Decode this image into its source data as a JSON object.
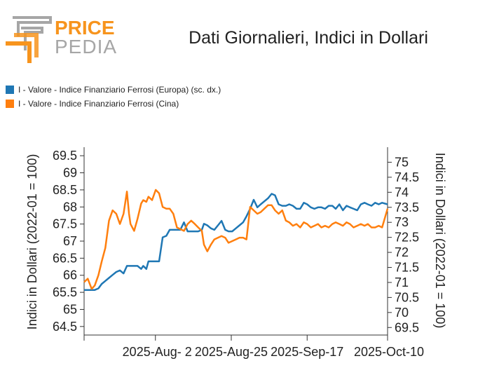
{
  "logo": {
    "line1": "PRICE",
    "line2": "PEDIA",
    "accent": "#f7941d",
    "gray": "#a6a6a6"
  },
  "chart_data": {
    "type": "line",
    "title": "Dati Giornalieri, Indici in Dollari",
    "ylabel_left": "Indici in Dollari (2022-01 = 100)",
    "ylabel_right": "Indici in Dollari (2022-01 = 100)",
    "y_left": {
      "min": 64.25,
      "max": 69.75,
      "ticks": [
        "64.5",
        "65",
        "65.5",
        "66",
        "66.5",
        "67",
        "67.5",
        "68",
        "68.5",
        "69",
        "69.5"
      ]
    },
    "y_right": {
      "min": 69.25,
      "max": 75.5,
      "ticks": [
        "69.5",
        "70",
        "70.5",
        "71",
        "71.5",
        "72",
        "72.5",
        "73",
        "73.5",
        "74",
        "74.5",
        "75"
      ]
    },
    "x": {
      "min": 0,
      "max": 100,
      "ticks": [
        {
          "pos": 23.5,
          "label": "2025-Aug- 2"
        },
        {
          "pos": 48.5,
          "label": "2025-Aug-25"
        },
        {
          "pos": 73.5,
          "label": "2025-Sep-17"
        },
        {
          "pos": 100,
          "label": "2025-Oct-10"
        }
      ]
    },
    "legend_position": "top-left",
    "series": [
      {
        "name": "I - Valore - Indice Finanziario Ferrosi (Europa) (sc. dx.)",
        "axis": "right",
        "color": "#1f77b4",
        "x": [
          0,
          1.2,
          2.5,
          3.5,
          4.7,
          5.8,
          7,
          8.2,
          9.4,
          10.6,
          11.8,
          13,
          14.1,
          14.8,
          15.3,
          16.5,
          17.6,
          18.8,
          19.5,
          20.5,
          21.2,
          22.4,
          23.6,
          24.7,
          25.9,
          27.1,
          28.2,
          29.4,
          30.6,
          31.7,
          32.9,
          34.1,
          35.3,
          36.5,
          37.6,
          38.8,
          39.5,
          40.6,
          41.8,
          42.9,
          44.1,
          45.3,
          46.5,
          47.6,
          48.8,
          50,
          51.2,
          52.4,
          53.5,
          54.7,
          55.9,
          57.1,
          58.2,
          59.4,
          60.6,
          61.8,
          62.9,
          64.1,
          65.3,
          66.5,
          67.6,
          68.8,
          70,
          71.2,
          72.4,
          73.5,
          74.7,
          75.9,
          77.1,
          78.2,
          79.4,
          80.6,
          81.8,
          82.9,
          84.1,
          85.3,
          86.5,
          87.6,
          88.8,
          90,
          91.2,
          92.4,
          93.5,
          94.7,
          95.9,
          97.1,
          98.2,
          100
        ],
        "y": [
          70.75,
          70.75,
          70.75,
          70.75,
          70.8,
          70.95,
          71.05,
          71.15,
          71.25,
          71.35,
          71.4,
          71.3,
          71.55,
          71.55,
          71.55,
          71.55,
          71.55,
          71.45,
          71.55,
          71.45,
          71.7,
          71.7,
          71.7,
          71.7,
          72.5,
          72.55,
          72.75,
          72.75,
          72.75,
          72.75,
          73.0,
          72.7,
          72.7,
          72.7,
          72.7,
          72.75,
          72.95,
          72.9,
          72.8,
          72.75,
          72.9,
          73.05,
          72.75,
          72.7,
          72.7,
          72.8,
          72.9,
          73.0,
          73.2,
          73.45,
          73.75,
          73.5,
          73.6,
          73.7,
          73.8,
          73.95,
          73.9,
          73.6,
          73.55,
          73.55,
          73.6,
          73.55,
          73.45,
          73.45,
          73.65,
          73.6,
          73.5,
          73.45,
          73.5,
          73.5,
          73.45,
          73.55,
          73.55,
          73.45,
          73.6,
          73.4,
          73.55,
          73.5,
          73.45,
          73.4,
          73.6,
          73.65,
          73.6,
          73.55,
          73.65,
          73.6,
          73.65,
          73.6
        ]
      },
      {
        "name": "I - Valore - Indice Finanziario Ferrosi (Cina)",
        "axis": "left",
        "color": "#ff7f0e",
        "x": [
          0,
          1.2,
          2.5,
          3.5,
          4.7,
          5.8,
          7,
          8.2,
          9.4,
          10.6,
          11.8,
          13,
          14.1,
          14.8,
          15.3,
          16.5,
          17.6,
          18.8,
          19.5,
          20.5,
          21.2,
          22.4,
          23.6,
          24.7,
          25.9,
          27.1,
          28.2,
          29.4,
          30.6,
          31.7,
          32.9,
          34.1,
          35.3,
          36.5,
          37.6,
          38.8,
          39.5,
          40.6,
          41.8,
          42.9,
          44.1,
          45.3,
          46.5,
          47.6,
          48.8,
          50,
          51.2,
          52.4,
          53.5,
          54.7,
          55.9,
          57.1,
          58.2,
          59.4,
          60.6,
          61.8,
          62.9,
          64.1,
          65.3,
          66.5,
          67.6,
          68.8,
          70,
          71.2,
          72.4,
          73.5,
          74.7,
          75.9,
          77.1,
          78.2,
          79.4,
          80.6,
          81.8,
          82.9,
          84.1,
          85.3,
          86.5,
          87.6,
          88.8,
          90,
          91.2,
          92.4,
          93.5,
          94.7,
          95.9,
          97.1,
          98.2,
          100
        ],
        "y": [
          65.8,
          65.9,
          65.6,
          65.7,
          66.0,
          66.4,
          66.8,
          67.6,
          67.9,
          67.8,
          67.5,
          67.8,
          68.45,
          67.8,
          67.5,
          67.3,
          67.65,
          68.1,
          68.2,
          68.15,
          68.3,
          68.2,
          68.5,
          68.4,
          68.0,
          67.95,
          67.95,
          67.8,
          67.4,
          67.35,
          67.3,
          67.5,
          67.6,
          67.5,
          67.4,
          67.3,
          66.9,
          66.7,
          66.9,
          67.05,
          67.1,
          67.15,
          67.1,
          66.95,
          67.0,
          67.05,
          67.1,
          67.1,
          67.05,
          68.0,
          67.9,
          67.8,
          67.85,
          67.95,
          68.05,
          68.05,
          67.9,
          67.8,
          67.9,
          67.6,
          67.55,
          67.45,
          67.5,
          67.4,
          67.55,
          67.5,
          67.4,
          67.45,
          67.5,
          67.4,
          67.45,
          67.4,
          67.5,
          67.55,
          67.5,
          67.45,
          67.55,
          67.5,
          67.4,
          67.45,
          67.5,
          67.45,
          67.5,
          67.4,
          67.4,
          67.45,
          67.4,
          67.95
        ]
      }
    ]
  }
}
